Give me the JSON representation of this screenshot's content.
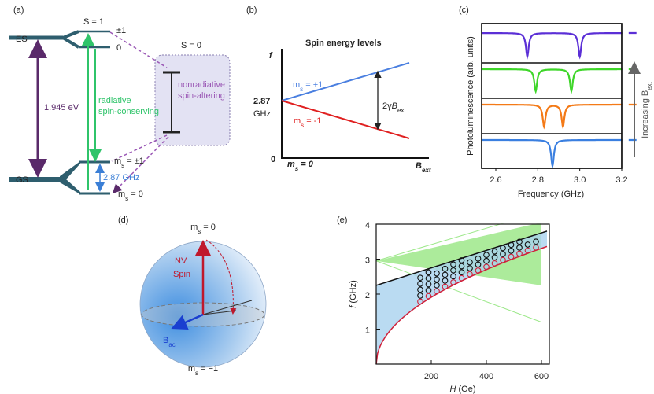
{
  "panel_a": {
    "label": "(a)",
    "es": "ES",
    "gs": "GS",
    "s1": "S = 1",
    "s0": "S = 0",
    "pm1": "±1",
    "zero": "0",
    "energy": "1.945 eV",
    "radiative": [
      "radiative",
      "spin-conserving"
    ],
    "nonradiative": [
      "nonradiative",
      "spin-altering"
    ],
    "gap": "2.87 GHz",
    "ms_pm1": {
      "m": "m",
      "s": "s",
      "rest": " = ±1"
    },
    "ms_0": {
      "m": "m",
      "s": "s",
      "rest": " = 0"
    }
  },
  "panel_b": {
    "label": "(b)",
    "title": "Spin energy levels",
    "f": "f",
    "freq": [
      "2.87",
      "GHz"
    ],
    "plus": {
      "m": "m",
      "s": "s",
      "rest": " = +1"
    },
    "minus": {
      "m": "m",
      "s": "s",
      "rest": " = -1"
    },
    "split": {
      "pre": "2γ",
      "b": "B",
      "sub": "ext"
    },
    "origin": "0",
    "ms0": {
      "m": "m",
      "s": "s",
      "rest": " = 0"
    },
    "bext": {
      "b": "B",
      "sub": "ext"
    }
  },
  "panel_c": {
    "label": "(c)",
    "ylabel": "Photoluminescence (arb. units)",
    "xlabel": "Frequency (GHz)",
    "xticks": [
      "2.6",
      "2.8",
      "3.0",
      "3.2"
    ],
    "arrow": {
      "pre": "Increasing B",
      "sub": "ext"
    }
  },
  "panel_d": {
    "label": "(d)",
    "top": {
      "m": "m",
      "s": "s",
      "rest": " = 0"
    },
    "bottom": {
      "m": "m",
      "s": "s",
      "rest": " = −1"
    },
    "spin": [
      "NV",
      "Spin"
    ],
    "bac": {
      "b": "B",
      "sub": "ac"
    }
  },
  "panel_e": {
    "label": "(e)",
    "ylabel": {
      "pre": "f",
      "rest": " (GHz)"
    },
    "xlabel": {
      "pre": "H",
      "rest": " (Oe)"
    },
    "xticks": [
      "200",
      "400",
      "600"
    ],
    "yticks": [
      "1",
      "2",
      "3",
      "4"
    ]
  }
}
